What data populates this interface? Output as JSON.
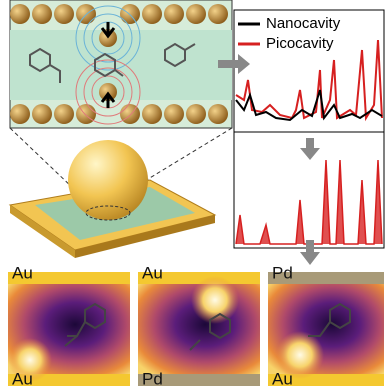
{
  "legend": [
    "Nanocavity",
    "Picocavity"
  ],
  "panels": [
    {
      "top": "Au",
      "bottom": "Au"
    },
    {
      "top": "Au",
      "bottom": "Pd"
    },
    {
      "top": "Pd",
      "bottom": "Au"
    }
  ]
}
